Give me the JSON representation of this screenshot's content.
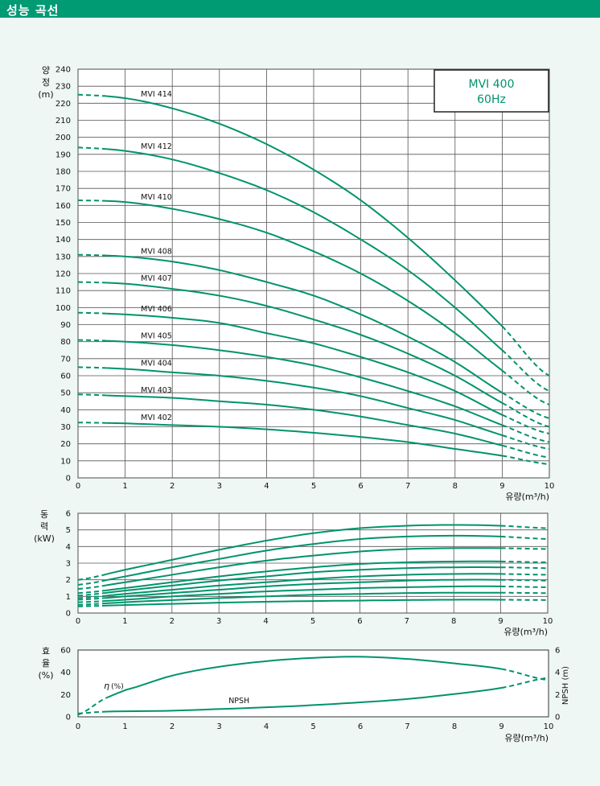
{
  "page_title": "성능 곡선",
  "colors": {
    "curve": "#00936b",
    "header_bg": "#009a73",
    "grid": "#555555"
  },
  "model_box": {
    "line1": "MVI 400",
    "line2": "60Hz"
  },
  "chart_data": [
    {
      "type": "line",
      "title": "",
      "xlabel": "유량(m³/h)",
      "ylabel": [
        "양",
        "정",
        "(m)"
      ],
      "xlim": [
        0,
        10
      ],
      "ylim": [
        0,
        240
      ],
      "xticks": [
        "0",
        "1",
        "2",
        "3",
        "4",
        "5",
        "6",
        "7",
        "8",
        "9",
        "10"
      ],
      "yticks": [
        "0",
        "10",
        "20",
        "30",
        "40",
        "50",
        "60",
        "70",
        "80",
        "90",
        "100",
        "110",
        "120",
        "130",
        "140",
        "150",
        "160",
        "170",
        "180",
        "190",
        "200",
        "210",
        "220",
        "230",
        "240"
      ],
      "grid": true,
      "dashed_ranges": [
        [
          0,
          0.6
        ],
        [
          9,
          10
        ]
      ],
      "series": [
        {
          "name": "MVI 414",
          "x": [
            0,
            1,
            2,
            3,
            4,
            5,
            6,
            7,
            8,
            9,
            10
          ],
          "y": [
            225,
            223,
            217,
            208,
            196,
            181,
            163,
            141,
            116,
            89,
            60
          ]
        },
        {
          "name": "MVI 412",
          "x": [
            0,
            1,
            2,
            3,
            4,
            5,
            6,
            7,
            8,
            9,
            10
          ],
          "y": [
            194,
            192,
            187,
            179,
            169,
            156,
            140,
            122,
            100,
            75,
            51
          ]
        },
        {
          "name": "MVI 410",
          "x": [
            0,
            1,
            2,
            3,
            4,
            5,
            6,
            7,
            8,
            9,
            10
          ],
          "y": [
            163,
            162,
            158,
            152,
            144,
            133,
            120,
            104,
            85,
            63,
            43
          ]
        },
        {
          "name": "MVI 408",
          "x": [
            0,
            1,
            2,
            3,
            4,
            5,
            6,
            7,
            8,
            9,
            10
          ],
          "y": [
            131,
            130,
            127,
            122,
            115,
            107,
            96,
            83,
            68,
            50,
            35
          ]
        },
        {
          "name": "MVI 407",
          "x": [
            0,
            1,
            2,
            3,
            4,
            5,
            6,
            7,
            8,
            9,
            10
          ],
          "y": [
            115,
            114,
            111,
            107,
            101,
            93,
            84,
            73,
            60,
            44,
            30
          ]
        },
        {
          "name": "MVI 406",
          "x": [
            0,
            1,
            2,
            3,
            4,
            5,
            6,
            7,
            8,
            9,
            10
          ],
          "y": [
            97,
            96,
            94,
            91,
            85,
            79,
            71,
            62,
            51,
            37,
            26
          ]
        },
        {
          "name": "MVI 405",
          "x": [
            0,
            1,
            2,
            3,
            4,
            5,
            6,
            7,
            8,
            9,
            10
          ],
          "y": [
            81,
            80,
            78,
            75,
            71,
            66,
            59,
            51,
            42,
            31,
            21
          ]
        },
        {
          "name": "MVI 404",
          "x": [
            0,
            1,
            2,
            3,
            4,
            5,
            6,
            7,
            8,
            9,
            10
          ],
          "y": [
            65,
            64,
            62,
            60,
            57,
            53,
            48,
            41,
            34,
            25,
            17
          ]
        },
        {
          "name": "MVI 403",
          "x": [
            0,
            1,
            2,
            3,
            4,
            5,
            6,
            7,
            8,
            9,
            10
          ],
          "y": [
            49,
            48,
            47,
            45,
            43,
            40,
            36,
            31,
            26,
            19,
            12
          ]
        },
        {
          "name": "MVI 402",
          "x": [
            0,
            1,
            2,
            3,
            4,
            5,
            6,
            7,
            8,
            9,
            10
          ],
          "y": [
            32.5,
            32,
            31,
            30,
            28.5,
            26.5,
            24,
            21,
            17,
            13,
            8
          ]
        }
      ],
      "label_positions_x": 1.3,
      "model_box_position": "top-right"
    },
    {
      "type": "line",
      "title": "",
      "xlabel": "유량(m³/h)",
      "ylabel": [
        "동",
        "력",
        "(kW)"
      ],
      "xlim": [
        0,
        10
      ],
      "ylim": [
        0,
        6
      ],
      "xticks": [
        "0",
        "1",
        "2",
        "3",
        "4",
        "5",
        "6",
        "7",
        "8",
        "9",
        "10"
      ],
      "yticks": [
        "0",
        "1",
        "2",
        "3",
        "4",
        "5",
        "6"
      ],
      "grid": true,
      "dashed_ranges": [
        [
          0,
          0.6
        ],
        [
          9,
          10
        ]
      ],
      "series": [
        {
          "x": [
            0,
            1,
            2,
            3,
            4,
            5,
            6,
            7,
            8,
            9,
            10
          ],
          "y": [
            2.0,
            2.6,
            3.2,
            3.8,
            4.35,
            4.8,
            5.1,
            5.25,
            5.3,
            5.25,
            5.1
          ]
        },
        {
          "x": [
            0,
            1,
            2,
            3,
            4,
            5,
            6,
            7,
            8,
            9,
            10
          ],
          "y": [
            1.7,
            2.2,
            2.75,
            3.25,
            3.75,
            4.15,
            4.45,
            4.6,
            4.65,
            4.6,
            4.45
          ]
        },
        {
          "x": [
            0,
            1,
            2,
            3,
            4,
            5,
            6,
            7,
            8,
            9,
            10
          ],
          "y": [
            1.45,
            1.85,
            2.3,
            2.75,
            3.15,
            3.45,
            3.7,
            3.85,
            3.9,
            3.9,
            3.85
          ]
        },
        {
          "x": [
            0,
            1,
            2,
            3,
            4,
            5,
            6,
            7,
            8,
            9,
            10
          ],
          "y": [
            1.2,
            1.5,
            1.85,
            2.2,
            2.5,
            2.75,
            2.95,
            3.05,
            3.1,
            3.1,
            3.05
          ]
        },
        {
          "x": [
            0,
            1,
            2,
            3,
            4,
            5,
            6,
            7,
            8,
            9,
            10
          ],
          "y": [
            1.05,
            1.35,
            1.65,
            1.95,
            2.2,
            2.45,
            2.6,
            2.7,
            2.75,
            2.75,
            2.7
          ]
        },
        {
          "x": [
            0,
            1,
            2,
            3,
            4,
            5,
            6,
            7,
            8,
            9,
            10
          ],
          "y": [
            0.9,
            1.15,
            1.4,
            1.65,
            1.85,
            2.05,
            2.2,
            2.3,
            2.35,
            2.35,
            2.3
          ]
        },
        {
          "x": [
            0,
            1,
            2,
            3,
            4,
            5,
            6,
            7,
            8,
            9,
            10
          ],
          "y": [
            0.8,
            1.0,
            1.2,
            1.4,
            1.6,
            1.75,
            1.85,
            1.95,
            2.0,
            2.0,
            1.95
          ]
        },
        {
          "x": [
            0,
            1,
            2,
            3,
            4,
            5,
            6,
            7,
            8,
            9,
            10
          ],
          "y": [
            0.65,
            0.8,
            1.0,
            1.15,
            1.3,
            1.4,
            1.5,
            1.55,
            1.6,
            1.6,
            1.55
          ]
        },
        {
          "x": [
            0,
            1,
            2,
            3,
            4,
            5,
            6,
            7,
            8,
            9,
            10
          ],
          "y": [
            0.5,
            0.65,
            0.78,
            0.9,
            1.0,
            1.1,
            1.15,
            1.2,
            1.22,
            1.22,
            1.2
          ]
        },
        {
          "x": [
            0,
            1,
            2,
            3,
            4,
            5,
            6,
            7,
            8,
            9,
            10
          ],
          "y": [
            0.4,
            0.48,
            0.55,
            0.62,
            0.68,
            0.72,
            0.75,
            0.78,
            0.8,
            0.8,
            0.78
          ]
        }
      ]
    },
    {
      "type": "line",
      "title": "",
      "xlabel": "유량(m³/h)",
      "ylabel": [
        "효",
        "율",
        "(%)"
      ],
      "y2label": "NPSH (m)",
      "xlim": [
        0,
        10
      ],
      "ylim": [
        0,
        60
      ],
      "y2lim": [
        0,
        6
      ],
      "xticks": [
        "0",
        "1",
        "2",
        "3",
        "4",
        "5",
        "6",
        "7",
        "8",
        "9",
        "10"
      ],
      "yticks": [
        "0",
        "20",
        "40",
        "60"
      ],
      "y2ticks": [
        "0",
        "2",
        "4",
        "6"
      ],
      "grid": false,
      "dashed_ranges": [
        [
          0,
          0.6
        ],
        [
          9,
          10
        ]
      ],
      "series": [
        {
          "name": "η(%)",
          "axis": "left",
          "x": [
            0,
            0.6,
            1,
            2,
            3,
            4,
            5,
            6,
            7,
            8,
            9,
            10
          ],
          "y": [
            2,
            17,
            24,
            37,
            45,
            50,
            53,
            54,
            52,
            48,
            43,
            33
          ]
        },
        {
          "name": "NPSH",
          "axis": "right",
          "x": [
            0,
            0.5,
            1,
            2,
            3,
            4,
            5,
            6,
            7,
            8,
            9,
            10
          ],
          "y": [
            0.3,
            0.45,
            0.5,
            0.55,
            0.7,
            0.85,
            1.05,
            1.3,
            1.6,
            2.05,
            2.6,
            3.5
          ]
        }
      ],
      "series_labels": {
        "eta": "η",
        "eta_unit": "(%)",
        "npsh": "NPSH"
      }
    }
  ]
}
